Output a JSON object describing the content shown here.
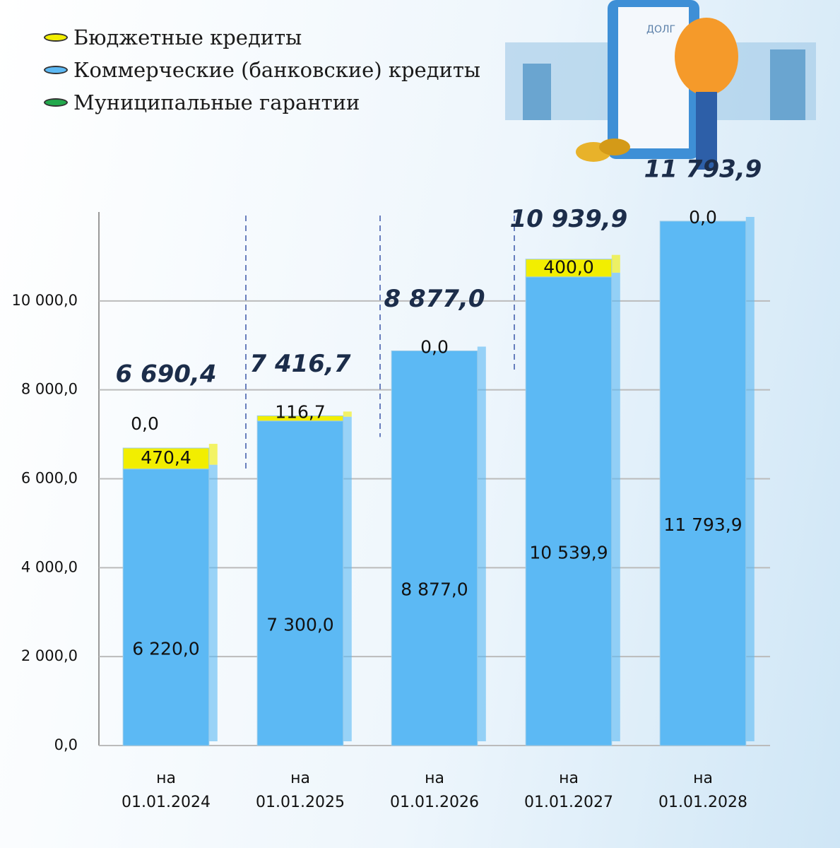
{
  "chart_data": {
    "type": "stacked-bar",
    "categories": [
      "на\n01.01.2024",
      "на\n01.01.2025",
      "на\n01.01.2026",
      "на\n01.01.2027",
      "на\n01.01.2028"
    ],
    "series": [
      {
        "name": "Бюджетные кредиты",
        "color": "#f2ee00",
        "values": [
          470.4,
          116.7,
          0,
          400,
          0
        ],
        "value_labels": [
          "470,4",
          "116,7",
          "0,0",
          "400,0",
          "0,0"
        ]
      },
      {
        "name": "Коммерческие (банковские) кредиты",
        "color": "#5cb9f4",
        "values": [
          6220,
          7300,
          8877,
          10539.9,
          11793.9
        ],
        "value_labels": [
          "6 220,0",
          "7 300,0",
          "8 877,0",
          "10 539,9",
          "11 793,9"
        ]
      },
      {
        "name": "Муниципальные гарантии",
        "color": "#23a84c",
        "values": [
          0,
          0,
          0,
          0,
          0
        ],
        "value_labels": [
          "0,0",
          null,
          null,
          null,
          null
        ]
      }
    ],
    "totals": [
      6690.4,
      7416.7,
      8877,
      10939.9,
      11793.9
    ],
    "total_labels": [
      "6 690,4",
      "7 416,7",
      "8 877,0",
      "10 939,9",
      "11 793,9"
    ],
    "ylim": [
      0,
      12000
    ],
    "yticks": [
      {
        "value": 0,
        "label": "0,0"
      },
      {
        "value": 2000,
        "label": "2 000,0"
      },
      {
        "value": 4000,
        "label": "4 000,0"
      },
      {
        "value": 6000,
        "label": "6 000,0"
      },
      {
        "value": 8000,
        "label": "8 000,0"
      },
      {
        "value": 10000,
        "label": "10 000,0"
      }
    ],
    "grid": true
  }
}
